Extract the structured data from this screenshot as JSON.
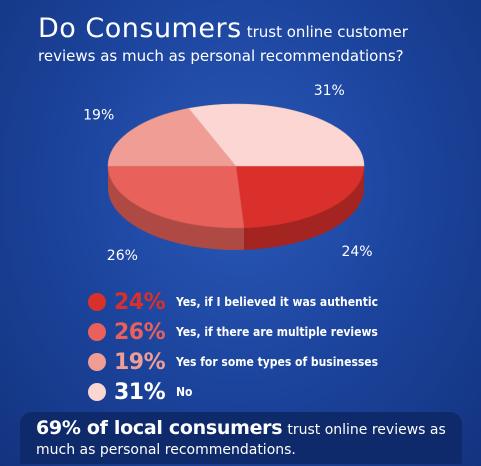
{
  "title": {
    "big": "Do Consumers",
    "small": "trust online customer",
    "line2": "reviews as much as personal recommendations?"
  },
  "chart_data": {
    "type": "pie",
    "slices": [
      {
        "label": "24%",
        "value": 24,
        "color": "#d9302b",
        "legend_pct": "24%",
        "legend_text": "Yes, if I believed it was authentic"
      },
      {
        "label": "26%",
        "value": 26,
        "color": "#e8615a",
        "legend_pct": "26%",
        "legend_text": "Yes, if there are multiple reviews"
      },
      {
        "label": "19%",
        "value": 19,
        "color": "#f09d96",
        "legend_pct": "19%",
        "legend_text": "Yes for some types of businesses"
      },
      {
        "label": "31%",
        "value": 31,
        "color": "#fbd6d2",
        "legend_pct": "31%",
        "legend_text": "No"
      }
    ]
  },
  "banner": {
    "bold": "69% of local consumers",
    "light": "trust online reviews as",
    "line2": "much as personal recommendations."
  },
  "colors": {
    "background": "#1d46a0",
    "banner": "#0f2a6b"
  }
}
